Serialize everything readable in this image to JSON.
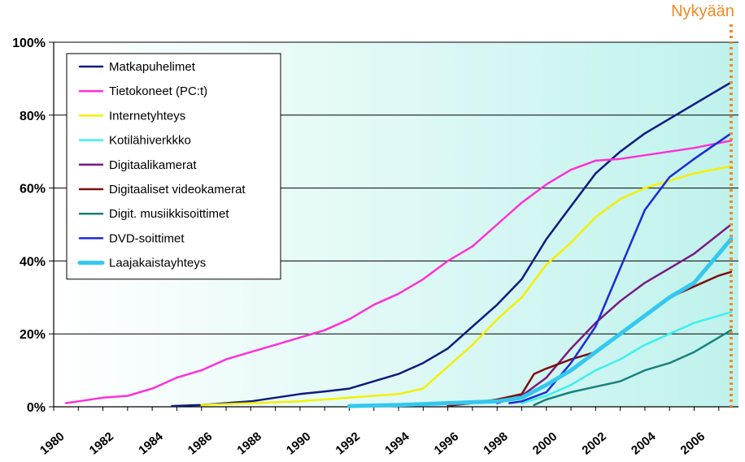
{
  "chart_data": {
    "type": "line",
    "title": "",
    "xlabel": "",
    "ylabel": "",
    "xlim": [
      1980,
      2007.8
    ],
    "ylim": [
      0,
      100
    ],
    "x_ticks": [
      1980,
      1982,
      1984,
      1986,
      1988,
      1990,
      1992,
      1994,
      1996,
      1998,
      2000,
      2002,
      2004,
      2006
    ],
    "y_ticks": [
      0,
      20,
      40,
      60,
      80,
      100
    ],
    "y_tick_labels": [
      "0%",
      "20%",
      "40%",
      "60%",
      "80%",
      "100%"
    ],
    "grid": "horizontal",
    "legend_position": "top-left",
    "plot_background": [
      "#ffffff",
      "#bff2ec"
    ],
    "now_marker": {
      "label": "Nykyään",
      "x": 2007.5,
      "color": "#f08a24"
    },
    "series": [
      {
        "name": "Matkapuhelimet",
        "color": "#0d1a80",
        "width": 2.5,
        "x": [
          1984.8,
          1986,
          1987,
          1988,
          1989,
          1990,
          1991,
          1992,
          1993,
          1994,
          1995,
          1996,
          1997,
          1998,
          1999,
          2000,
          2001,
          2002,
          2003,
          2004,
          2005,
          2006,
          2007.5
        ],
        "y": [
          0.2,
          0.5,
          1,
          1.5,
          2.5,
          3.5,
          4.2,
          5,
          7,
          9,
          12,
          16,
          22,
          28,
          35,
          46,
          55,
          64,
          70,
          75,
          79,
          83,
          89
        ]
      },
      {
        "name": "Tietokoneet  (PC:t)",
        "color": "#ff2fd8",
        "width": 2.5,
        "x": [
          1980.5,
          1981,
          1982,
          1983,
          1984,
          1985,
          1986,
          1987,
          1988,
          1989,
          1990,
          1991,
          1992,
          1993,
          1994,
          1995,
          1996,
          1997,
          1998,
          1999,
          2000,
          2001,
          2002,
          2003,
          2004,
          2005,
          2006,
          2007.5
        ],
        "y": [
          1,
          1.5,
          2.5,
          3,
          5,
          8,
          10,
          13,
          15,
          17,
          19,
          21,
          24,
          28,
          31,
          35,
          40,
          44,
          50,
          56,
          61,
          65,
          67.5,
          68,
          69,
          70,
          71,
          73
        ]
      },
      {
        "name": "Internetyhteys",
        "color": "#f4f000",
        "width": 2.5,
        "x": [
          1986,
          1988,
          1990,
          1991,
          1992,
          1993,
          1994,
          1995,
          1996,
          1997,
          1998,
          1999,
          2000,
          2001,
          2002,
          2003,
          2004,
          2005,
          2006,
          2007.5
        ],
        "y": [
          0.5,
          1,
          1.5,
          2,
          2.5,
          3,
          3.5,
          5,
          11,
          17,
          24,
          30,
          39,
          45,
          52,
          57,
          60,
          62,
          64,
          66
        ]
      },
      {
        "name": "Kotilähiverkkko",
        "color": "#3cf0f0",
        "width": 2.5,
        "x": [
          1999,
          2000,
          2001,
          2002,
          2003,
          2004,
          2005,
          2006,
          2007,
          2007.5
        ],
        "y": [
          1,
          3,
          6,
          10,
          13,
          17,
          20,
          23,
          25,
          26
        ]
      },
      {
        "name": "Digitaalikamerat",
        "color": "#7a1a80",
        "width": 2.5,
        "x": [
          1998,
          1999,
          2000,
          2001,
          2002,
          2003,
          2004,
          2005,
          2006,
          2007.5
        ],
        "y": [
          1,
          3,
          8,
          16,
          23,
          29,
          34,
          38,
          42,
          50
        ]
      },
      {
        "name": "Digitaaliset videokamerat",
        "color": "#7a1010",
        "width": 2.5,
        "x": [
          1996,
          1997,
          1998,
          1999,
          1999.5,
          2000,
          2001,
          2002,
          2003,
          2004,
          2005,
          2006,
          2007,
          2007.5
        ],
        "y": [
          0.3,
          1,
          2,
          3.5,
          9,
          10.5,
          13,
          15,
          20,
          25,
          30,
          33,
          36,
          37
        ]
      },
      {
        "name": "Digit.  musiikkisoittimet",
        "color": "#1a8080",
        "width": 2.5,
        "x": [
          1999.5,
          2000,
          2001,
          2002,
          2003,
          2004,
          2005,
          2006,
          2007.5
        ],
        "y": [
          0.5,
          2,
          4,
          5.5,
          7,
          10,
          12,
          15,
          21
        ]
      },
      {
        "name": "DVD-soittimet",
        "color": "#1a2ad8",
        "width": 2.5,
        "x": [
          1998.5,
          1999,
          2000,
          2001,
          2002,
          2003,
          2004,
          2005,
          2006,
          2007.5
        ],
        "y": [
          1,
          1.5,
          4,
          12,
          22,
          38,
          54,
          63,
          68,
          75
        ]
      },
      {
        "name": "Laajakaistayhteys",
        "color": "#33c8f0",
        "width": 5,
        "x": [
          1992,
          1994,
          1996,
          1998,
          1999,
          2000,
          2001,
          2002,
          2003,
          2004,
          2005,
          2006,
          2007.5
        ],
        "y": [
          0.2,
          0.5,
          1,
          1.5,
          2.5,
          6,
          10,
          15,
          20,
          25,
          30,
          34,
          46
        ]
      }
    ]
  }
}
